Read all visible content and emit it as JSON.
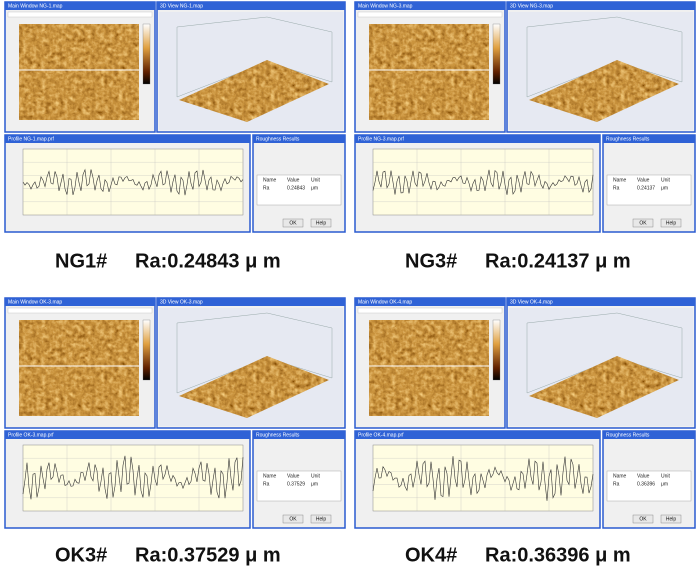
{
  "common": {
    "table_headers": [
      "Name",
      "Value",
      "Unit"
    ],
    "param": "Ra",
    "unit": "μm",
    "buttons": [
      "OK",
      "Help"
    ]
  },
  "panels": [
    {
      "label": "NG1#",
      "ra_text": "Ra:0.24843 μ m",
      "value": "0.24843",
      "main_title": "Main Window NG-1.map",
      "view_title": "3D View NG-1.map",
      "profile_title": "Profile NG-1.map.prf",
      "roughness_title": "Roughness Results"
    },
    {
      "label": "NG3#",
      "ra_text": "Ra:0.24137 μ m",
      "value": "0.24137",
      "main_title": "Main Window NG-3.map",
      "view_title": "3D View NG-3.map",
      "profile_title": "Profile NG-3.map.prf",
      "roughness_title": "Roughness Results"
    },
    {
      "label": "OK3#",
      "ra_text": "Ra:0.37529 μ m",
      "value": "0.37529",
      "main_title": "Main Window OK-3.map",
      "view_title": "3D View OK-3.map",
      "profile_title": "Profile OK-3.map.prf",
      "roughness_title": "Roughness Results"
    },
    {
      "label": "OK4#",
      "ra_text": "Ra:0.36396 μ m",
      "value": "0.36396",
      "main_title": "Main Window OK-4.map",
      "view_title": "3D View OK-4.map",
      "profile_title": "Profile OK-4.map.prf",
      "roughness_title": "Roughness Results"
    }
  ]
}
